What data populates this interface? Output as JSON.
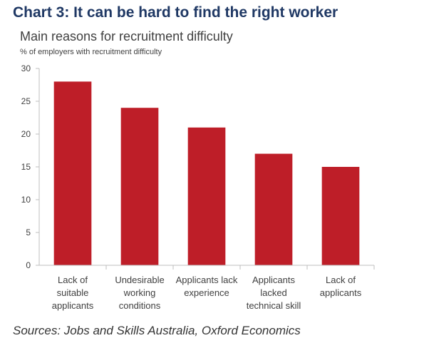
{
  "heading": "Chart 3: It can be hard to find the right worker",
  "source": "Sources: Jobs and Skills Australia, Oxford Economics",
  "colors": {
    "bar": "#be1e28",
    "heading": "#1f3864",
    "axis": "#bfbfbf"
  },
  "chart_data": {
    "type": "bar",
    "title": "Main reasons for recruitment difficulty",
    "ylabel": "% of employers with recruitment difficulty",
    "xlabel": "",
    "categories": [
      [
        "Lack of",
        "suitable",
        "applicants"
      ],
      [
        "Undesirable",
        "working",
        "conditions"
      ],
      [
        "Applicants lack",
        "experience"
      ],
      [
        "Applicants",
        "lacked",
        "technical skill"
      ],
      [
        "Lack of",
        "applicants"
      ]
    ],
    "values": [
      28,
      24,
      21,
      17,
      15
    ],
    "ylim": [
      0,
      30
    ],
    "yticks": [
      0,
      5,
      10,
      15,
      20,
      25,
      30
    ],
    "grid": false,
    "legend": "none"
  }
}
